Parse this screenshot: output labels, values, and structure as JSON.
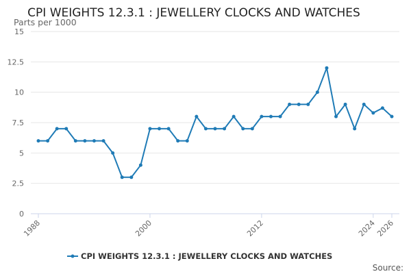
{
  "chart_data": {
    "type": "line",
    "title": "CPI WEIGHTS 12.3.1 : JEWELLERY CLOCKS AND WATCHES",
    "ylabel": "Parts per 1000",
    "xlabel": "",
    "ylim": [
      0,
      15
    ],
    "yticks": [
      0,
      2.5,
      5,
      7.5,
      10,
      12.5,
      15
    ],
    "ytick_labels": [
      "0",
      "2.5",
      "5",
      "7.5",
      "10",
      "12.5",
      "15"
    ],
    "xtick_labels": [
      {
        "label": "1988",
        "x": 1988
      },
      {
        "label": "2000",
        "x": 2000
      },
      {
        "label": "2012",
        "x": 2012
      },
      {
        "label": "2024",
        "x": 2024
      },
      {
        "label": "2026",
        "x": 2026
      }
    ],
    "xlim": [
      1988,
      2026
    ],
    "grid": true,
    "legend_position": "bottom",
    "series": [
      {
        "name": "CPI WEIGHTS 12.3.1 : JEWELLERY CLOCKS AND WATCHES",
        "color": "#1f7bb6",
        "x": [
          1988,
          1989,
          1990,
          1991,
          1992,
          1993,
          1994,
          1995,
          1996,
          1997,
          1998,
          1999,
          2000,
          2001,
          2002,
          2003,
          2004,
          2005,
          2006,
          2007,
          2008,
          2009,
          2010,
          2011,
          2012,
          2013,
          2014,
          2015,
          2016,
          2017,
          2018,
          2019,
          2020,
          2021,
          2022,
          2023,
          2024,
          2025,
          2026
        ],
        "values": [
          6,
          6,
          7,
          7,
          6,
          6,
          6,
          6,
          5,
          3,
          3,
          4,
          7,
          7,
          7,
          6,
          6,
          8,
          7,
          7,
          7,
          8,
          7,
          7,
          8,
          8,
          8,
          9,
          9,
          9,
          10,
          12,
          8,
          9,
          7,
          9,
          8.3,
          8.7,
          8
        ]
      }
    ],
    "source_label": "Source:"
  }
}
